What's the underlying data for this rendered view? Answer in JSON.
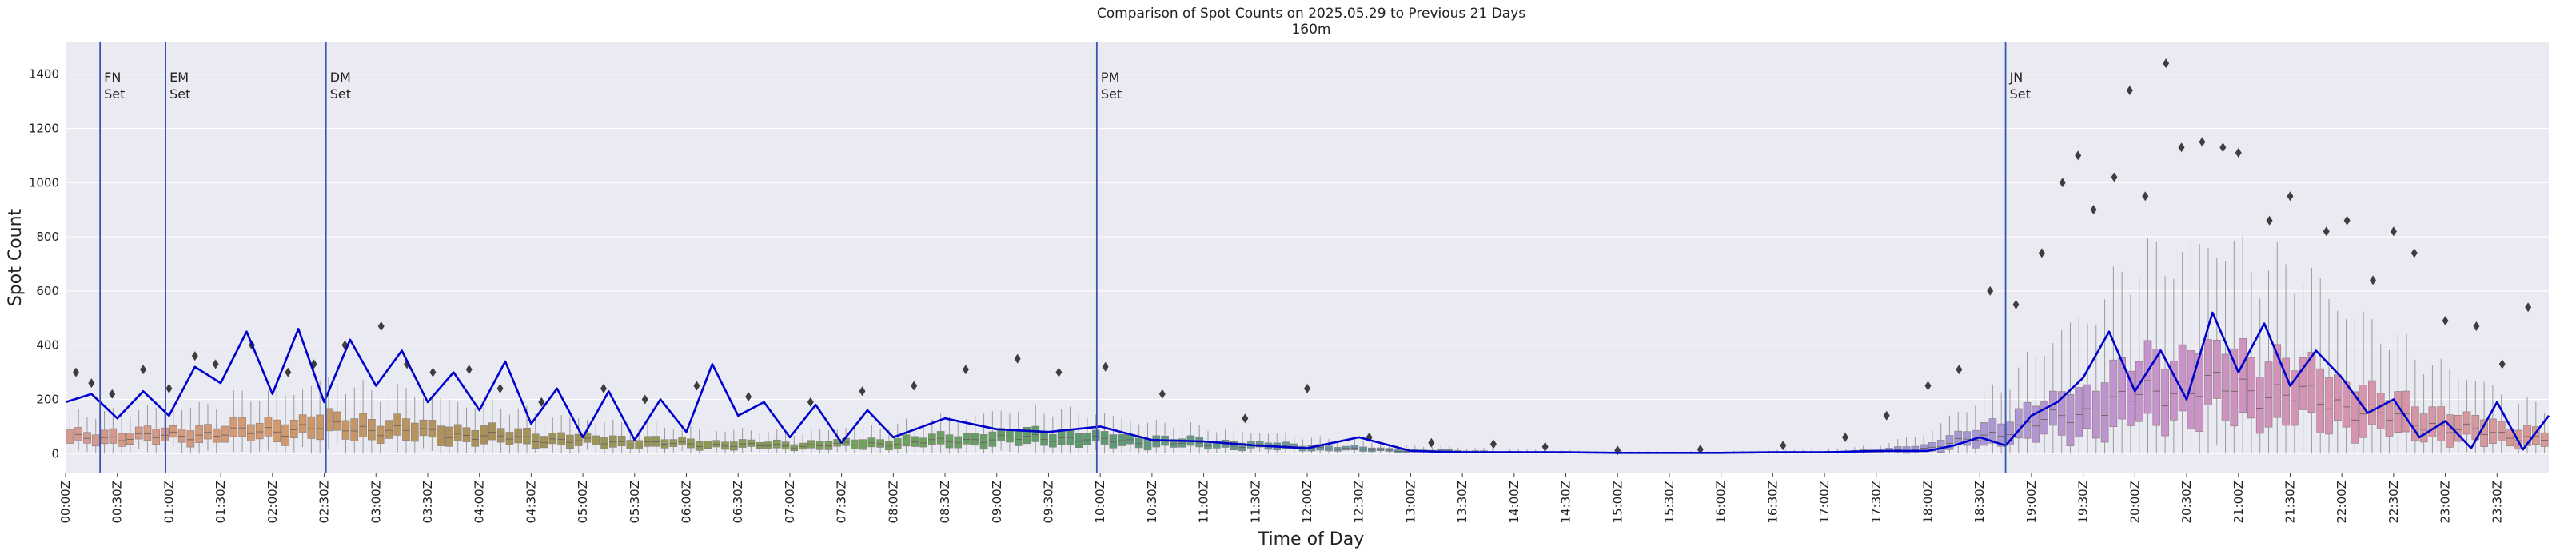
{
  "chart_data": {
    "type": "box",
    "title": "Comparison of Spot Counts on 2025.05.29 to Previous 21 Days",
    "subtitle": "160m",
    "xlabel": "Time of Day",
    "ylabel": "Spot Count",
    "ylim": [
      -70,
      1520
    ],
    "yticks": [
      0,
      200,
      400,
      600,
      800,
      1000,
      1200,
      1400
    ],
    "grid": true,
    "xtick_labels": [
      "00:00Z",
      "00:30Z",
      "01:00Z",
      "01:30Z",
      "02:00Z",
      "02:30Z",
      "03:00Z",
      "03:30Z",
      "04:00Z",
      "04:30Z",
      "05:00Z",
      "05:30Z",
      "06:00Z",
      "06:30Z",
      "07:00Z",
      "07:30Z",
      "08:00Z",
      "08:30Z",
      "09:00Z",
      "09:30Z",
      "10:00Z",
      "10:30Z",
      "11:00Z",
      "11:30Z",
      "12:00Z",
      "12:30Z",
      "13:00Z",
      "13:30Z",
      "14:00Z",
      "14:30Z",
      "15:00Z",
      "15:30Z",
      "16:00Z",
      "16:30Z",
      "17:00Z",
      "17:30Z",
      "18:00Z",
      "18:30Z",
      "19:00Z",
      "19:30Z",
      "20:00Z",
      "20:30Z",
      "21:00Z",
      "21:30Z",
      "22:00Z",
      "22:30Z",
      "23:00Z",
      "23:30Z"
    ],
    "slots_per_day": 288,
    "events": [
      {
        "slot": 20,
        "label": "FN\nSet"
      },
      {
        "slot": 58,
        "label": "EM\nSet"
      },
      {
        "slot": 151,
        "label": "DM\nSet"
      },
      {
        "slot": 598,
        "label": "PM\nSet"
      },
      {
        "slot": 1125,
        "label": "JN\nSet"
      }
    ],
    "colors": {
      "plot_bg": "#eaeaf2",
      "grid": "#ffffff",
      "current_line": "#0000cc",
      "event_line": "#3a55b5",
      "outlier": "#3d3d3d",
      "whisker": "#9a9a9a"
    },
    "box_color_stops": [
      {
        "hour": 0,
        "color": "#d39a93"
      },
      {
        "hour": 2,
        "color": "#d49a6c"
      },
      {
        "hour": 4,
        "color": "#a89158"
      },
      {
        "hour": 6,
        "color": "#8e9a55"
      },
      {
        "hour": 8,
        "color": "#6ea35c"
      },
      {
        "hour": 10,
        "color": "#5a9a72"
      },
      {
        "hour": 12,
        "color": "#6a9aa0"
      },
      {
        "hour": 14,
        "color": "#5f96b8"
      },
      {
        "hour": 16,
        "color": "#7a97c8"
      },
      {
        "hour": 18,
        "color": "#9d9ad4"
      },
      {
        "hour": 20,
        "color": "#c493cf"
      },
      {
        "hour": 22,
        "color": "#d793b0"
      },
      {
        "hour": 24,
        "color": "#d49a93"
      }
    ],
    "box_anchors_hour": [
      0,
      1,
      2,
      2.5,
      3,
      4,
      5,
      6,
      7,
      8,
      9,
      9.5,
      10,
      11,
      12,
      13,
      14,
      15,
      16,
      17,
      17.5,
      18,
      18.5,
      19,
      19.5,
      20,
      20.5,
      21,
      21.5,
      22,
      22.5,
      23,
      23.5,
      24
    ],
    "box_anchor_medians": [
      55,
      65,
      85,
      100,
      90,
      65,
      45,
      35,
      28,
      38,
      55,
      60,
      50,
      35,
      22,
      10,
      5,
      3,
      3,
      5,
      8,
      20,
      60,
      110,
      150,
      210,
      250,
      240,
      220,
      180,
      130,
      100,
      70,
      55
    ],
    "box_anchor_iqr": [
      45,
      50,
      70,
      80,
      75,
      60,
      40,
      30,
      25,
      35,
      50,
      55,
      45,
      30,
      20,
      10,
      5,
      3,
      3,
      5,
      10,
      30,
      70,
      120,
      180,
      240,
      260,
      250,
      230,
      190,
      140,
      110,
      80,
      55
    ],
    "current_line": {
      "name": "2025.05.29",
      "hours": [
        0,
        0.25,
        0.5,
        0.75,
        1,
        1.25,
        1.5,
        1.75,
        2,
        2.25,
        2.5,
        2.75,
        3,
        3.25,
        3.5,
        3.75,
        4,
        4.25,
        4.5,
        4.75,
        5,
        5.25,
        5.5,
        5.75,
        6,
        6.25,
        6.5,
        6.75,
        7,
        7.25,
        7.5,
        7.75,
        8,
        8.5,
        9,
        9.5,
        10,
        10.5,
        11,
        11.5,
        12,
        12.5,
        13,
        13.5,
        14,
        14.5,
        15,
        15.5,
        16,
        16.5,
        17,
        17.5,
        18,
        18.25,
        18.5,
        18.75,
        19,
        19.25,
        19.5,
        19.75,
        20,
        20.25,
        20.5,
        20.75,
        21,
        21.25,
        21.5,
        21.75,
        22,
        22.25,
        22.5,
        22.75,
        23,
        23.25,
        23.5,
        23.75,
        24
      ],
      "values": [
        190,
        220,
        130,
        230,
        140,
        320,
        260,
        450,
        220,
        460,
        190,
        420,
        250,
        380,
        190,
        300,
        160,
        340,
        110,
        240,
        60,
        230,
        50,
        200,
        80,
        330,
        140,
        190,
        60,
        180,
        40,
        160,
        60,
        130,
        90,
        80,
        100,
        50,
        45,
        30,
        20,
        60,
        10,
        5,
        5,
        5,
        3,
        3,
        3,
        5,
        5,
        10,
        10,
        30,
        60,
        30,
        140,
        190,
        280,
        450,
        230,
        380,
        200,
        520,
        300,
        480,
        250,
        380,
        280,
        150,
        200,
        60,
        120,
        20,
        190,
        15,
        140
      ]
    },
    "outlier_points": [
      {
        "hour": 0.1,
        "value": 300
      },
      {
        "hour": 0.25,
        "value": 260
      },
      {
        "hour": 0.45,
        "value": 220
      },
      {
        "hour": 0.75,
        "value": 310
      },
      {
        "hour": 1.0,
        "value": 240
      },
      {
        "hour": 1.25,
        "value": 360
      },
      {
        "hour": 1.45,
        "value": 330
      },
      {
        "hour": 1.8,
        "value": 400
      },
      {
        "hour": 2.15,
        "value": 300
      },
      {
        "hour": 2.4,
        "value": 330
      },
      {
        "hour": 2.7,
        "value": 400
      },
      {
        "hour": 3.05,
        "value": 470
      },
      {
        "hour": 3.3,
        "value": 330
      },
      {
        "hour": 3.55,
        "value": 300
      },
      {
        "hour": 3.9,
        "value": 310
      },
      {
        "hour": 4.2,
        "value": 240
      },
      {
        "hour": 4.6,
        "value": 190
      },
      {
        "hour": 5.2,
        "value": 240
      },
      {
        "hour": 5.6,
        "value": 200
      },
      {
        "hour": 6.1,
        "value": 250
      },
      {
        "hour": 6.6,
        "value": 210
      },
      {
        "hour": 7.2,
        "value": 190
      },
      {
        "hour": 7.7,
        "value": 230
      },
      {
        "hour": 8.2,
        "value": 250
      },
      {
        "hour": 8.7,
        "value": 310
      },
      {
        "hour": 9.2,
        "value": 350
      },
      {
        "hour": 9.6,
        "value": 300
      },
      {
        "hour": 10.05,
        "value": 320
      },
      {
        "hour": 10.6,
        "value": 220
      },
      {
        "hour": 11.4,
        "value": 130
      },
      {
        "hour": 12.0,
        "value": 240
      },
      {
        "hour": 12.6,
        "value": 60
      },
      {
        "hour": 13.2,
        "value": 40
      },
      {
        "hour": 13.8,
        "value": 35
      },
      {
        "hour": 14.3,
        "value": 25
      },
      {
        "hour": 15.0,
        "value": 12
      },
      {
        "hour": 15.8,
        "value": 15
      },
      {
        "hour": 16.6,
        "value": 30
      },
      {
        "hour": 17.2,
        "value": 60
      },
      {
        "hour": 17.6,
        "value": 140
      },
      {
        "hour": 18.0,
        "value": 250
      },
      {
        "hour": 18.3,
        "value": 310
      },
      {
        "hour": 18.6,
        "value": 600
      },
      {
        "hour": 18.85,
        "value": 550
      },
      {
        "hour": 19.1,
        "value": 740
      },
      {
        "hour": 19.3,
        "value": 1000
      },
      {
        "hour": 19.45,
        "value": 1100
      },
      {
        "hour": 19.6,
        "value": 900
      },
      {
        "hour": 19.8,
        "value": 1020
      },
      {
        "hour": 19.95,
        "value": 1340
      },
      {
        "hour": 20.1,
        "value": 950
      },
      {
        "hour": 20.3,
        "value": 1440
      },
      {
        "hour": 20.45,
        "value": 1130
      },
      {
        "hour": 20.65,
        "value": 1150
      },
      {
        "hour": 20.85,
        "value": 1130
      },
      {
        "hour": 21.0,
        "value": 1110
      },
      {
        "hour": 21.3,
        "value": 860
      },
      {
        "hour": 21.5,
        "value": 950
      },
      {
        "hour": 21.85,
        "value": 820
      },
      {
        "hour": 22.05,
        "value": 860
      },
      {
        "hour": 22.3,
        "value": 640
      },
      {
        "hour": 22.5,
        "value": 820
      },
      {
        "hour": 22.7,
        "value": 740
      },
      {
        "hour": 23.0,
        "value": 490
      },
      {
        "hour": 23.3,
        "value": 470
      },
      {
        "hour": 23.55,
        "value": 330
      },
      {
        "hour": 23.8,
        "value": 540
      }
    ]
  }
}
